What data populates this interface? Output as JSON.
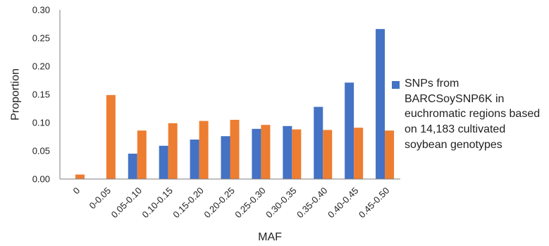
{
  "chart_data": {
    "type": "bar",
    "categories": [
      "0",
      "0-0.05",
      "0.05-0.10",
      "0.10-0.15",
      "0.15-0.20",
      "0.20-0.25",
      "0.25-0.30",
      "0.30-0.35",
      "0.35-0.40",
      "0.40-0.45",
      "0.45-0.50"
    ],
    "series": [
      {
        "name": "SNPs from BARCSoySNP6K in euchromatic regions based on 14,183 cultivated soybean genotypes",
        "color": "#4472c4",
        "values": [
          0,
          0,
          0.045,
          0.059,
          0.07,
          0.076,
          0.089,
          0.094,
          0.128,
          0.171,
          0.266
        ]
      },
      {
        "name": "",
        "color": "#ed7d31",
        "values": [
          0.008,
          0.149,
          0.086,
          0.099,
          0.103,
          0.105,
          0.096,
          0.088,
          0.087,
          0.091,
          0.086
        ]
      }
    ],
    "xlabel": "MAF",
    "ylabel": "Proportion",
    "ylim": [
      0,
      0.3
    ],
    "yticks": [
      "0.00",
      "0.05",
      "0.10",
      "0.15",
      "0.20",
      "0.25",
      "0.30"
    ],
    "grid": false,
    "legend_position": "right"
  }
}
